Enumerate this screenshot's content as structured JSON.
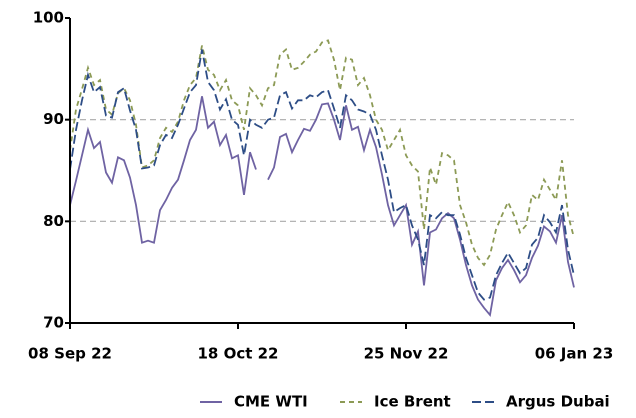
{
  "chart_data": {
    "type": "line",
    "categories": [
      "08 Sep 22",
      null,
      null,
      null,
      null,
      null,
      null,
      null,
      null,
      null,
      null,
      null,
      null,
      null,
      null,
      null,
      null,
      null,
      null,
      null,
      null,
      null,
      null,
      null,
      null,
      null,
      null,
      null,
      "18 Oct 22",
      null,
      null,
      null,
      null,
      null,
      null,
      null,
      null,
      null,
      null,
      null,
      null,
      null,
      null,
      null,
      null,
      null,
      null,
      null,
      null,
      null,
      null,
      null,
      null,
      null,
      null,
      null,
      "25 Nov 22",
      null,
      null,
      null,
      null,
      null,
      null,
      null,
      null,
      null,
      null,
      null,
      null,
      null,
      null,
      null,
      null,
      null,
      null,
      null,
      null,
      null,
      null,
      null,
      null,
      null,
      null,
      null,
      "06 Jan 23"
    ],
    "series": [
      {
        "name": "CME WTI",
        "color": "#6f63a3",
        "linestyle": "solid",
        "values": [
          81.6,
          84,
          86.5,
          89,
          87.2,
          87.8,
          84.8,
          83.8,
          86.3,
          86,
          84.3,
          81.6,
          77.9,
          78.1,
          77.9,
          81.1,
          82.1,
          83.3,
          84.1,
          86,
          88,
          89,
          92.3,
          89.2,
          89.8,
          87.5,
          88.5,
          86.2,
          86.5,
          82.6,
          86.8,
          85.1,
          null,
          84.1,
          85.3,
          88.3,
          88.6,
          86.8,
          88,
          89.1,
          88.9,
          90,
          91.5,
          91.6,
          90,
          88,
          91.4,
          89,
          89.3,
          87,
          89,
          87.3,
          84.6,
          81.6,
          79.6,
          80.6,
          81.6,
          77.7,
          79,
          73.7,
          78.9,
          79.2,
          80.3,
          80.8,
          80.3,
          78.2,
          75.7,
          73.7,
          72.3,
          71.5,
          70.8,
          74.2,
          75.4,
          76.2,
          75.2,
          74,
          74.7,
          76.4,
          77.6,
          79.5,
          79,
          77.9,
          80.6,
          76,
          73.5
        ]
      },
      {
        "name": "Ice Brent",
        "color": "#8c9a55",
        "linestyle": "dashed",
        "values": [
          87,
          91,
          93,
          95.1,
          93.4,
          93.9,
          91,
          90.5,
          92.6,
          93.1,
          91.9,
          89.5,
          85.3,
          85.5,
          86,
          88.2,
          89.2,
          88.8,
          89.8,
          91.9,
          93.4,
          94.1,
          97.3,
          94.9,
          94.4,
          92.9,
          93.9,
          91.9,
          91.4,
          89,
          93.1,
          92.4,
          91.4,
          93.1,
          93.4,
          96.4,
          96.9,
          94.9,
          95.1,
          95.7,
          96.4,
          96.7,
          97.6,
          97.8,
          95.9,
          92.9,
          96.1,
          95.9,
          93.4,
          94.1,
          92.4,
          90,
          89,
          87,
          88,
          89,
          86.5,
          85.5,
          84.9,
          79.2,
          85.3,
          83.6,
          86.7,
          86.5,
          86,
          81.6,
          79.9,
          77.7,
          76.4,
          75.7,
          76.7,
          79.2,
          80.6,
          81.9,
          80.6,
          78.9,
          79.6,
          82.6,
          82.1,
          84.1,
          83.1,
          82.1,
          86,
          80.6,
          78.4
        ]
      },
      {
        "name": "Argus Dubai",
        "color": "#2d4d86",
        "linestyle": "longdash",
        "values": [
          85.1,
          89,
          91.9,
          94.4,
          92.7,
          93.2,
          90.4,
          90.2,
          92.7,
          93.1,
          90.9,
          89,
          85.2,
          85.3,
          85.5,
          87.5,
          88.5,
          88.2,
          89.5,
          91.1,
          92.7,
          93.4,
          96.9,
          93.7,
          92.9,
          91,
          92,
          90,
          89.5,
          86.5,
          90,
          89.5,
          89.2,
          90,
          90.2,
          92.4,
          92.7,
          91.1,
          91.9,
          91.9,
          92.4,
          92.2,
          92.7,
          92.9,
          91.1,
          89.2,
          92.4,
          91.9,
          91,
          90.8,
          90.5,
          89,
          86.5,
          84.1,
          80.9,
          81.3,
          81.6,
          79.6,
          78.2,
          75.7,
          80.6,
          80.3,
          80.9,
          80.6,
          80.6,
          78.7,
          76.4,
          74.7,
          73,
          72.3,
          72.5,
          74.7,
          75.9,
          76.9,
          75.9,
          74.9,
          75.4,
          77.7,
          78.4,
          80.6,
          79.9,
          78.9,
          81.6,
          77.2,
          74.7
        ]
      }
    ],
    "ylim": [
      70,
      100
    ],
    "yticks": [
      70,
      80,
      90,
      100
    ],
    "grid": true,
    "legend": "bottom"
  }
}
